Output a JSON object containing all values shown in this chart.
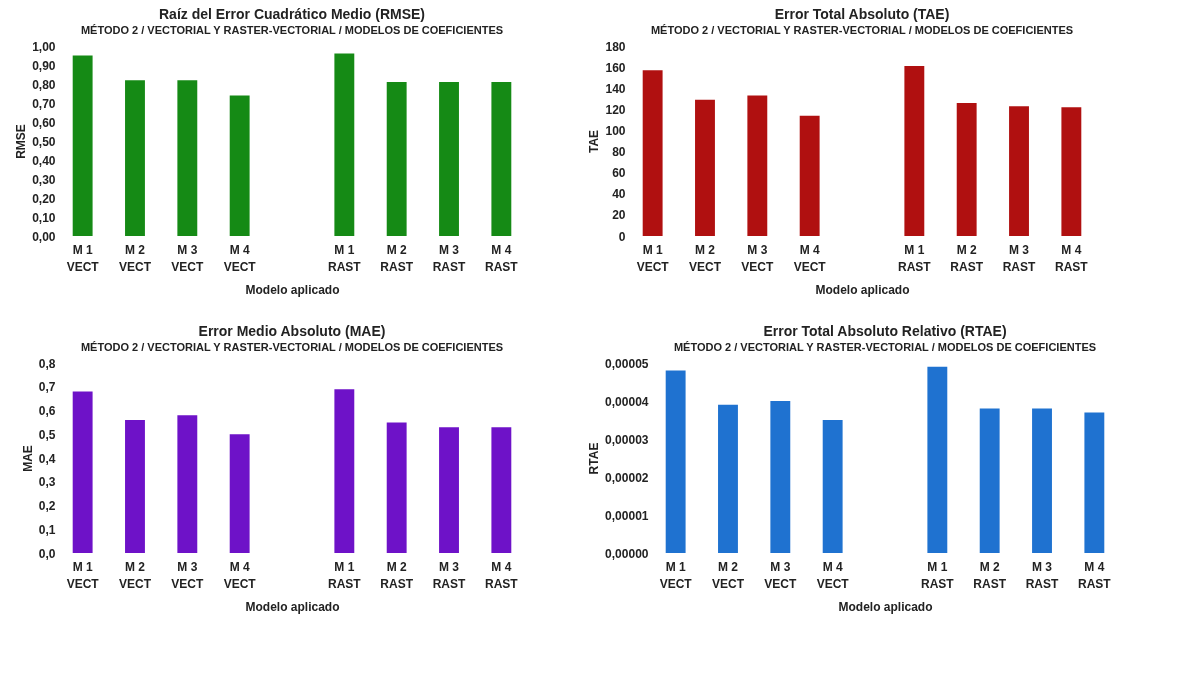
{
  "chart_data": [
    {
      "type": "bar",
      "title": "Raíz del Error Cuadrático Medio (RMSE)",
      "subtitle": "MÉTODO 2 / VECTORIAL Y  RASTER-VECTORIAL / MODELOS DE COEFICIENTES",
      "xlabel": "Modelo aplicado",
      "ylabel": "RMSE",
      "categories": [
        "M 1\nVECT",
        "M 2\nVECT",
        "M 3\nVECT",
        "M 4\nVECT",
        null,
        "M 1\nRAST",
        "M 2\nRAST",
        "M 3\nRAST",
        "M 4\nRAST"
      ],
      "values": [
        0.95,
        0.82,
        0.82,
        0.74,
        null,
        0.96,
        0.81,
        0.81,
        0.81
      ],
      "color": "#158a15",
      "ylim": [
        0,
        1
      ],
      "yticks": [
        {
          "value": 0,
          "label": "0,00"
        },
        {
          "value": 0.1,
          "label": "0,10"
        },
        {
          "value": 0.2,
          "label": "0,20"
        },
        {
          "value": 0.3,
          "label": "0,30"
        },
        {
          "value": 0.4,
          "label": "0,40"
        },
        {
          "value": 0.5,
          "label": "0,50"
        },
        {
          "value": 0.6,
          "label": "0,60"
        },
        {
          "value": 0.7,
          "label": "0,70"
        },
        {
          "value": 0.8,
          "label": "0,80"
        },
        {
          "value": 0.9,
          "label": "0,90"
        },
        {
          "value": 1,
          "label": "1,00"
        }
      ],
      "grid": false
    },
    {
      "type": "bar",
      "title": "Error Total Absoluto (TAE)",
      "subtitle": "MÉTODO 2 / VECTORIAL Y RASTER-VECTORIAL / MODELOS DE COEFICIENTES",
      "xlabel": "Modelo aplicado",
      "ylabel": "TAE",
      "categories": [
        "M 1\nVECT",
        "M 2\nVECT",
        "M 3\nVECT",
        "M 4\nVECT",
        null,
        "M 1\nRAST",
        "M 2\nRAST",
        "M 3\nRAST",
        "M 4\nRAST"
      ],
      "values": [
        157,
        129,
        133,
        114,
        null,
        161,
        126,
        123,
        122
      ],
      "color": "#b01010",
      "ylim": [
        0,
        180
      ],
      "yticks": [
        0,
        20,
        40,
        60,
        80,
        100,
        120,
        140,
        160,
        180
      ],
      "grid": false
    },
    {
      "type": "bar",
      "title": "Error Medio Absoluto (MAE)",
      "subtitle": "MÉTODO 2 / VECTORIAL Y RASTER-VECTORIAL / MODELOS DE COEFICIENTES",
      "xlabel": "Modelo aplicado",
      "ylabel": "MAE",
      "categories": [
        "M 1\nVECT",
        "M 2\nVECT",
        "M 3\nVECT",
        "M 4\nVECT",
        null,
        "M 1\nRAST",
        "M 2\nRAST",
        "M 3\nRAST",
        "M 4\nRAST"
      ],
      "values": [
        0.68,
        0.56,
        0.58,
        0.5,
        null,
        0.69,
        0.55,
        0.53,
        0.53
      ],
      "color": "#6e12c8",
      "ylim": [
        0,
        0.8
      ],
      "yticks": [
        {
          "value": 0,
          "label": "0,0"
        },
        {
          "value": 0.1,
          "label": "0,1"
        },
        {
          "value": 0.2,
          "label": "0,2"
        },
        {
          "value": 0.3,
          "label": "0,3"
        },
        {
          "value": 0.4,
          "label": "0,4"
        },
        {
          "value": 0.5,
          "label": "0,5"
        },
        {
          "value": 0.6,
          "label": "0,6"
        },
        {
          "value": 0.7,
          "label": "0,7"
        },
        {
          "value": 0.8,
          "label": "0,8"
        }
      ],
      "grid": false
    },
    {
      "type": "bar",
      "title": "Error Total Absoluto Relativo (RTAE)",
      "subtitle": "MÉTODO 2 / VECTORIAL Y RASTER-VECTORIAL / MODELOS DE COEFICIENTES",
      "xlabel": "Modelo aplicado",
      "ylabel": "RTAE",
      "categories": [
        "M 1\nVECT",
        "M 2\nVECT",
        "M 3\nVECT",
        "M 4\nVECT",
        null,
        "M 1\nRAST",
        "M 2\nRAST",
        "M 3\nRAST",
        "M 4\nRAST"
      ],
      "values": [
        4.8e-05,
        3.9e-05,
        4e-05,
        3.5e-05,
        null,
        4.9e-05,
        3.8e-05,
        3.8e-05,
        3.7e-05
      ],
      "color": "#1f72d0",
      "ylim": [
        0,
        5e-05
      ],
      "yticks": [
        {
          "value": 0,
          "label": "0,00000"
        },
        {
          "value": 1e-05,
          "label": "0,00001"
        },
        {
          "value": 2e-05,
          "label": "0,00002"
        },
        {
          "value": 3e-05,
          "label": "0,00003"
        },
        {
          "value": 4e-05,
          "label": "0,00004"
        },
        {
          "value": 5e-05,
          "label": "0,00005"
        }
      ],
      "grid": false
    }
  ]
}
